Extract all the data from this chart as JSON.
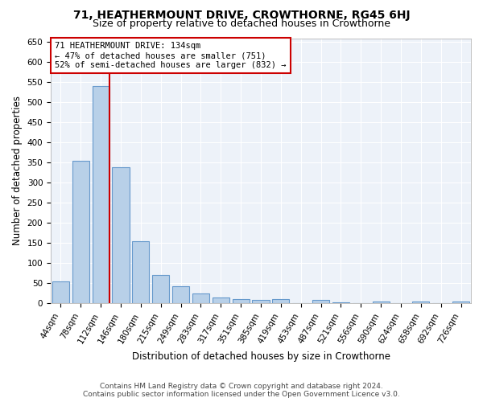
{
  "title": "71, HEATHERMOUNT DRIVE, CROWTHORNE, RG45 6HJ",
  "subtitle": "Size of property relative to detached houses in Crowthorne",
  "xlabel": "Distribution of detached houses by size in Crowthorne",
  "ylabel": "Number of detached properties",
  "bar_labels": [
    "44sqm",
    "78sqm",
    "112sqm",
    "146sqm",
    "180sqm",
    "215sqm",
    "249sqm",
    "283sqm",
    "317sqm",
    "351sqm",
    "385sqm",
    "419sqm",
    "453sqm",
    "487sqm",
    "521sqm",
    "556sqm",
    "590sqm",
    "624sqm",
    "658sqm",
    "692sqm",
    "726sqm"
  ],
  "bar_values": [
    55,
    355,
    540,
    338,
    155,
    70,
    42,
    25,
    15,
    10,
    8,
    10,
    0,
    8,
    3,
    1,
    5,
    1,
    5,
    0,
    5
  ],
  "bar_color": "#b8d0e8",
  "bar_edge_color": "#6699cc",
  "red_line_color": "#cc0000",
  "annotation_line1": "71 HEATHERMOUNT DRIVE: 134sqm",
  "annotation_line2": "← 47% of detached houses are smaller (751)",
  "annotation_line3": "52% of semi-detached houses are larger (832) →",
  "annotation_box_color": "#ffffff",
  "annotation_box_edge": "#cc0000",
  "ylim_max": 660,
  "yticks": [
    0,
    50,
    100,
    150,
    200,
    250,
    300,
    350,
    400,
    450,
    500,
    550,
    600,
    650
  ],
  "background_color": "#edf2f9",
  "footer_line1": "Contains HM Land Registry data © Crown copyright and database right 2024.",
  "footer_line2": "Contains public sector information licensed under the Open Government Licence v3.0.",
  "title_fontsize": 10,
  "subtitle_fontsize": 9,
  "xlabel_fontsize": 8.5,
  "ylabel_fontsize": 8.5,
  "tick_fontsize": 7.5,
  "annotation_fontsize": 7.5,
  "footer_fontsize": 6.5,
  "red_line_x": 2.45
}
